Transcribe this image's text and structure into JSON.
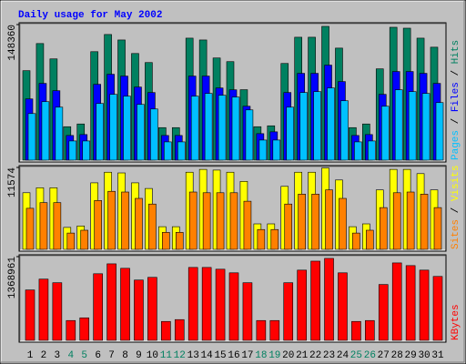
{
  "chart_data": [
    {
      "type": "bar",
      "title": "Daily usage for May 2002",
      "legend_separator": " / ",
      "ylim": [
        0,
        148360
      ],
      "yticks": [
        148360
      ],
      "series": [
        {
          "name": "Hits",
          "color": "#008060",
          "values": [
            97900,
            127600,
            110800,
            36600,
            39600,
            118700,
            137500,
            131500,
            116700,
            106800,
            35600,
            35600,
            133500,
            131500,
            111800,
            107800,
            77100,
            36600,
            37600,
            105800,
            134500,
            134500,
            146400,
            122600,
            35600,
            39600,
            99900,
            145400,
            144400,
            133500,
            123600
          ]
        },
        {
          "name": "Files",
          "color": "#0000ff",
          "values": [
            67000,
            84000,
            76000,
            27000,
            28000,
            83000,
            94000,
            92000,
            80000,
            74000,
            27000,
            27000,
            92000,
            92000,
            79000,
            77000,
            59000,
            29000,
            31000,
            74000,
            95000,
            95000,
            104000,
            86000,
            27000,
            28000,
            72000,
            97000,
            97000,
            95000,
            84000
          ]
        },
        {
          "name": "Pages",
          "color": "#00c0ff",
          "values": [
            51000,
            64000,
            58000,
            21000,
            21000,
            62000,
            72000,
            70000,
            61000,
            56000,
            20000,
            20000,
            70000,
            73000,
            71000,
            69000,
            55000,
            22000,
            22000,
            58000,
            74000,
            75000,
            79000,
            65000,
            20000,
            21000,
            59000,
            77000,
            75000,
            73000,
            63000
          ]
        }
      ]
    },
    {
      "type": "bar",
      "ylim": [
        0,
        11574
      ],
      "yticks": [
        11574
      ],
      "series": [
        {
          "name": "Visits",
          "color": "#ffff00",
          "values": [
            8000,
            8700,
            8700,
            3100,
            3300,
            9400,
            10900,
            10800,
            9400,
            8600,
            3200,
            3200,
            10900,
            11300,
            11200,
            10900,
            9600,
            3600,
            3600,
            8900,
            10900,
            10900,
            11500,
            9800,
            3200,
            3600,
            8400,
            11300,
            11300,
            10700,
            8400
          ]
        },
        {
          "name": "Sites",
          "color": "#ff8000",
          "values": [
            5800,
            6600,
            6600,
            2300,
            2700,
            6900,
            8200,
            8100,
            7200,
            6400,
            2400,
            2400,
            8100,
            8000,
            8000,
            8000,
            6800,
            2800,
            2800,
            6400,
            7800,
            7800,
            8400,
            7200,
            2300,
            2700,
            5900,
            8000,
            8100,
            7800,
            5900
          ]
        }
      ]
    },
    {
      "type": "bar",
      "ylim": [
        0,
        1368961
      ],
      "yticks": [
        1368961
      ],
      "categories": [
        "1",
        "2",
        "3",
        "4",
        "5",
        "6",
        "7",
        "8",
        "9",
        "10",
        "11",
        "12",
        "13",
        "14",
        "15",
        "16",
        "17",
        "18",
        "19",
        "20",
        "21",
        "22",
        "23",
        "24",
        "25",
        "26",
        "27",
        "28",
        "29",
        "30",
        "31"
      ],
      "tick_label_colors": [
        "#000",
        "#000",
        "#000",
        "#008060",
        "#008060",
        "#000",
        "#000",
        "#000",
        "#000",
        "#000",
        "#008060",
        "#008060",
        "#000",
        "#000",
        "#000",
        "#000",
        "#000",
        "#008060",
        "#008060",
        "#000",
        "#000",
        "#000",
        "#000",
        "#000",
        "#008060",
        "#008060",
        "#000",
        "#000",
        "#000",
        "#000",
        "#000"
      ],
      "series": [
        {
          "name": "KBytes",
          "color": "#ff0000",
          "values": [
            824000,
            1001000,
            942000,
            324000,
            368000,
            1089000,
            1251000,
            1178000,
            986000,
            1030000,
            309000,
            339000,
            1192000,
            1192000,
            1163000,
            1104000,
            942000,
            324000,
            324000,
            942000,
            1148000,
            1295000,
            1340000,
            1104000,
            309000,
            324000,
            913000,
            1266000,
            1222000,
            1148000,
            1045000
          ]
        }
      ]
    }
  ]
}
